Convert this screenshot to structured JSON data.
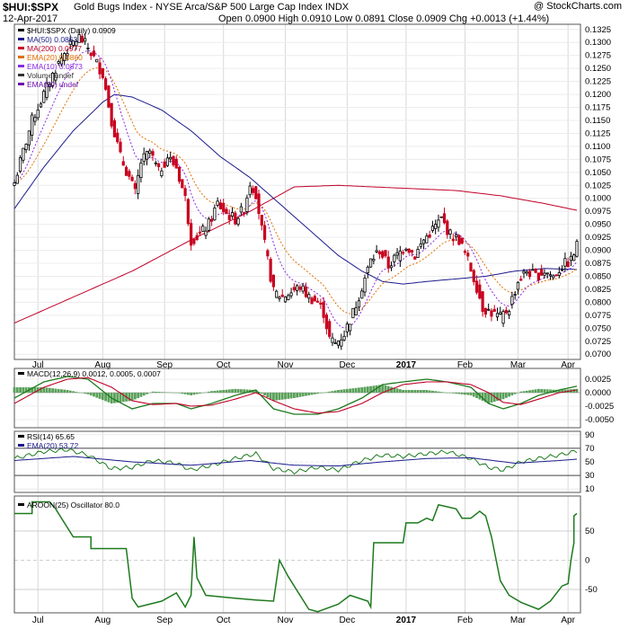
{
  "header": {
    "symbol": "$HUI:$SPX",
    "description": "Gold Bugs Index - NYSE Arca/S&P 500 Large Cap Index  INDX",
    "date": "12-Apr-2017",
    "ohlc": "Open 0.0900  High 0.0910  Low 0.0891  Close 0.0909  Chg +0.0013 (+1.44%)",
    "watermark": "@ StockCharts.com"
  },
  "chart_data": [
    {
      "type": "line",
      "panel": "price",
      "legend": [
        {
          "label": "$HUI:$SPX (Daily) 0.0909",
          "color": "#000000"
        },
        {
          "label": "MA(50) 0.0863",
          "color": "#1a1a8c"
        },
        {
          "label": "MA(200) 0.0977",
          "color": "#c00028"
        },
        {
          "label": "EMA(20) 0.0860",
          "color": "#e07000"
        },
        {
          "label": "EMA(10) 0.0873",
          "color": "#8a2be2"
        },
        {
          "label": "Volume undef",
          "color": "#333333"
        },
        {
          "label": "EMA(50) undef",
          "color": "#6a0dad"
        }
      ],
      "ylim": [
        0.069,
        0.1335
      ],
      "yticks": [
        "0.1325",
        "0.1300",
        "0.1275",
        "0.1250",
        "0.1225",
        "0.1200",
        "0.1175",
        "0.1150",
        "0.1125",
        "0.1100",
        "0.1075",
        "0.1050",
        "0.1025",
        "0.1000",
        "0.0975",
        "0.0950",
        "0.0925",
        "0.0900",
        "0.0875",
        "0.0850",
        "0.0825",
        "0.0800",
        "0.0775",
        "0.0750",
        "0.0725",
        "0.0700"
      ],
      "price_keys": [
        [
          0,
          0.103
        ],
        [
          3,
          0.109
        ],
        [
          6,
          0.115
        ],
        [
          10,
          0.12
        ],
        [
          14,
          0.125
        ],
        [
          17,
          0.128
        ],
        [
          20,
          0.13
        ],
        [
          22,
          0.131
        ],
        [
          25,
          0.129
        ],
        [
          27,
          0.127
        ],
        [
          30,
          0.124
        ],
        [
          33,
          0.115
        ],
        [
          36,
          0.108
        ],
        [
          39,
          0.104
        ],
        [
          41,
          0.101
        ],
        [
          43,
          0.107
        ],
        [
          46,
          0.109
        ],
        [
          49,
          0.105
        ],
        [
          52,
          0.108
        ],
        [
          55,
          0.106
        ],
        [
          58,
          0.1
        ],
        [
          60,
          0.092
        ],
        [
          63,
          0.093
        ],
        [
          66,
          0.095
        ],
        [
          69,
          0.099
        ],
        [
          72,
          0.097
        ],
        [
          75,
          0.096
        ],
        [
          78,
          0.098
        ],
        [
          80,
          0.103
        ],
        [
          82,
          0.101
        ],
        [
          84,
          0.094
        ],
        [
          86,
          0.088
        ],
        [
          88,
          0.082
        ],
        [
          91,
          0.081
        ],
        [
          94,
          0.082
        ],
        [
          97,
          0.083
        ],
        [
          100,
          0.081
        ],
        [
          103,
          0.08
        ],
        [
          105,
          0.078
        ],
        [
          107,
          0.073
        ],
        [
          109,
          0.072
        ],
        [
          112,
          0.074
        ],
        [
          115,
          0.078
        ],
        [
          118,
          0.083
        ],
        [
          121,
          0.088
        ],
        [
          124,
          0.09
        ],
        [
          127,
          0.087
        ],
        [
          130,
          0.089
        ],
        [
          133,
          0.091
        ],
        [
          136,
          0.089
        ],
        [
          139,
          0.092
        ],
        [
          142,
          0.094
        ],
        [
          145,
          0.096
        ],
        [
          148,
          0.093
        ],
        [
          151,
          0.092
        ],
        [
          154,
          0.088
        ],
        [
          157,
          0.083
        ],
        [
          159,
          0.079
        ],
        [
          162,
          0.078
        ],
        [
          165,
          0.077
        ],
        [
          168,
          0.079
        ],
        [
          171,
          0.084
        ],
        [
          174,
          0.086
        ],
        [
          177,
          0.085
        ],
        [
          180,
          0.086
        ],
        [
          183,
          0.085
        ],
        [
          186,
          0.087
        ],
        [
          189,
          0.088
        ],
        [
          191,
          0.0909
        ]
      ],
      "ma50_keys": [
        [
          0,
          0.098
        ],
        [
          10,
          0.106
        ],
        [
          20,
          0.113
        ],
        [
          30,
          0.1185
        ],
        [
          34,
          0.12
        ],
        [
          40,
          0.1195
        ],
        [
          50,
          0.117
        ],
        [
          60,
          0.113
        ],
        [
          70,
          0.108
        ],
        [
          80,
          0.104
        ],
        [
          90,
          0.099
        ],
        [
          100,
          0.094
        ],
        [
          110,
          0.089
        ],
        [
          118,
          0.086
        ],
        [
          125,
          0.084
        ],
        [
          132,
          0.0835
        ],
        [
          140,
          0.084
        ],
        [
          150,
          0.0845
        ],
        [
          160,
          0.085
        ],
        [
          170,
          0.086
        ],
        [
          180,
          0.0865
        ],
        [
          191,
          0.0863
        ]
      ],
      "ma200_keys": [
        [
          0,
          0.076
        ],
        [
          20,
          0.081
        ],
        [
          40,
          0.086
        ],
        [
          60,
          0.092
        ],
        [
          80,
          0.0975
        ],
        [
          95,
          0.1022
        ],
        [
          110,
          0.1025
        ],
        [
          130,
          0.102
        ],
        [
          150,
          0.1015
        ],
        [
          165,
          0.1005
        ],
        [
          180,
          0.099
        ],
        [
          191,
          0.0977
        ]
      ],
      "xlabels": [
        {
          "i": 8,
          "label": "Jul"
        },
        {
          "i": 30,
          "label": "Aug"
        },
        {
          "i": 51,
          "label": "Sep"
        },
        {
          "i": 71,
          "label": "Oct"
        },
        {
          "i": 92,
          "label": "Nov"
        },
        {
          "i": 113,
          "label": "Dec"
        },
        {
          "i": 133,
          "label": "2017"
        },
        {
          "i": 153,
          "label": "Feb"
        },
        {
          "i": 171,
          "label": "Mar"
        },
        {
          "i": 188,
          "label": "Apr"
        }
      ]
    },
    {
      "type": "line",
      "panel": "macd",
      "legend": [
        {
          "label": "MACD(12,26,9) 0.0012, 0.0005, 0.0007",
          "color": "#000000"
        }
      ],
      "ylim": [
        -0.0065,
        0.0045
      ],
      "yticks": [
        [
          "0.0025",
          0.0025
        ],
        [
          "0.0000",
          0.0
        ],
        [
          "-0.0025",
          -0.0025
        ],
        [
          "-0.0050",
          -0.005
        ]
      ],
      "macd_keys": [
        [
          0,
          -0.001
        ],
        [
          10,
          0.002
        ],
        [
          18,
          0.003
        ],
        [
          25,
          0.0025
        ],
        [
          33,
          -0.001
        ],
        [
          40,
          -0.003
        ],
        [
          47,
          -0.002
        ],
        [
          55,
          -0.002
        ],
        [
          60,
          -0.003
        ],
        [
          67,
          -0.002
        ],
        [
          75,
          -0.0005
        ],
        [
          82,
          0.0005
        ],
        [
          88,
          -0.003
        ],
        [
          95,
          -0.004
        ],
        [
          103,
          -0.004
        ],
        [
          110,
          -0.003
        ],
        [
          118,
          -0.001
        ],
        [
          125,
          0.0015
        ],
        [
          132,
          0.002
        ],
        [
          140,
          0.0025
        ],
        [
          147,
          0.002
        ],
        [
          155,
          0.001
        ],
        [
          161,
          -0.002
        ],
        [
          166,
          -0.003
        ],
        [
          172,
          -0.002
        ],
        [
          178,
          -0.0005
        ],
        [
          185,
          0.0005
        ],
        [
          191,
          0.0012
        ]
      ],
      "signal_keys": [
        [
          0,
          -0.002
        ],
        [
          10,
          0.001
        ],
        [
          18,
          0.0025
        ],
        [
          25,
          0.0028
        ],
        [
          33,
          0.001
        ],
        [
          40,
          -0.0015
        ],
        [
          47,
          -0.0022
        ],
        [
          55,
          -0.002
        ],
        [
          60,
          -0.0025
        ],
        [
          67,
          -0.0023
        ],
        [
          75,
          -0.0012
        ],
        [
          82,
          0.0
        ],
        [
          88,
          -0.0015
        ],
        [
          95,
          -0.003
        ],
        [
          103,
          -0.0038
        ],
        [
          110,
          -0.0035
        ],
        [
          118,
          -0.002
        ],
        [
          125,
          0.0
        ],
        [
          132,
          0.0015
        ],
        [
          140,
          0.002
        ],
        [
          147,
          0.002
        ],
        [
          155,
          0.0015
        ],
        [
          161,
          0.0
        ],
        [
          166,
          -0.0018
        ],
        [
          172,
          -0.0022
        ],
        [
          178,
          -0.0012
        ],
        [
          185,
          0.0
        ],
        [
          191,
          0.0005
        ]
      ]
    },
    {
      "type": "line",
      "panel": "rsi",
      "legend": [
        {
          "label": "RSI(14) 65.65",
          "color": "#000000"
        },
        {
          "label": "EMA(20) 53.72",
          "color": "#1a1a8c"
        }
      ],
      "ylim": [
        5,
        95
      ],
      "yticks": [
        90,
        70,
        50,
        30,
        10
      ],
      "rsi_keys": [
        [
          0,
          55
        ],
        [
          10,
          65
        ],
        [
          18,
          68
        ],
        [
          25,
          60
        ],
        [
          33,
          40
        ],
        [
          40,
          42
        ],
        [
          47,
          52
        ],
        [
          55,
          48
        ],
        [
          60,
          38
        ],
        [
          67,
          45
        ],
        [
          75,
          55
        ],
        [
          82,
          62
        ],
        [
          88,
          40
        ],
        [
          95,
          35
        ],
        [
          103,
          42
        ],
        [
          110,
          38
        ],
        [
          118,
          52
        ],
        [
          125,
          60
        ],
        [
          132,
          58
        ],
        [
          140,
          62
        ],
        [
          147,
          65
        ],
        [
          155,
          55
        ],
        [
          161,
          42
        ],
        [
          166,
          38
        ],
        [
          172,
          50
        ],
        [
          178,
          55
        ],
        [
          185,
          60
        ],
        [
          191,
          66
        ]
      ],
      "ema_keys": [
        [
          0,
          52
        ],
        [
          20,
          58
        ],
        [
          40,
          50
        ],
        [
          60,
          45
        ],
        [
          80,
          52
        ],
        [
          95,
          45
        ],
        [
          110,
          44
        ],
        [
          125,
          50
        ],
        [
          140,
          55
        ],
        [
          155,
          56
        ],
        [
          170,
          48
        ],
        [
          185,
          52
        ],
        [
          191,
          54
        ]
      ]
    },
    {
      "type": "line",
      "panel": "aroon",
      "legend": [
        {
          "label": "AROON(25) Oscillator 80.0",
          "color": "#000000"
        }
      ],
      "ylim": [
        -90,
        110
      ],
      "yticks": [
        50,
        0,
        -50
      ],
      "aroon_keys": [
        [
          0,
          80
        ],
        [
          6,
          80
        ],
        [
          6,
          100
        ],
        [
          12,
          100
        ],
        [
          14,
          88
        ],
        [
          20,
          40
        ],
        [
          26,
          40
        ],
        [
          26,
          20
        ],
        [
          38,
          20
        ],
        [
          40,
          -65
        ],
        [
          42,
          -80
        ],
        [
          50,
          -70
        ],
        [
          55,
          -56
        ],
        [
          58,
          -80
        ],
        [
          60,
          -60
        ],
        [
          61,
          40
        ],
        [
          62,
          -30
        ],
        [
          65,
          -60
        ],
        [
          75,
          -65
        ],
        [
          82,
          -68
        ],
        [
          88,
          -70
        ],
        [
          90,
          0
        ],
        [
          93,
          -28
        ],
        [
          100,
          -84
        ],
        [
          103,
          -88
        ],
        [
          110,
          -75
        ],
        [
          114,
          -60
        ],
        [
          120,
          -70
        ],
        [
          121,
          -80
        ],
        [
          122,
          30
        ],
        [
          126,
          30
        ],
        [
          132,
          30
        ],
        [
          133,
          64
        ],
        [
          137,
          64
        ],
        [
          140,
          72
        ],
        [
          142,
          68
        ],
        [
          144,
          95
        ],
        [
          150,
          88
        ],
        [
          152,
          72
        ],
        [
          155,
          72
        ],
        [
          158,
          84
        ],
        [
          160,
          76
        ],
        [
          162,
          40
        ],
        [
          165,
          -35
        ],
        [
          168,
          -60
        ],
        [
          172,
          -72
        ],
        [
          178,
          -84
        ],
        [
          182,
          -70
        ],
        [
          186,
          -44
        ],
        [
          188,
          -40
        ],
        [
          189,
          0
        ],
        [
          190,
          30
        ],
        [
          190,
          76
        ],
        [
          191,
          80
        ]
      ]
    }
  ]
}
